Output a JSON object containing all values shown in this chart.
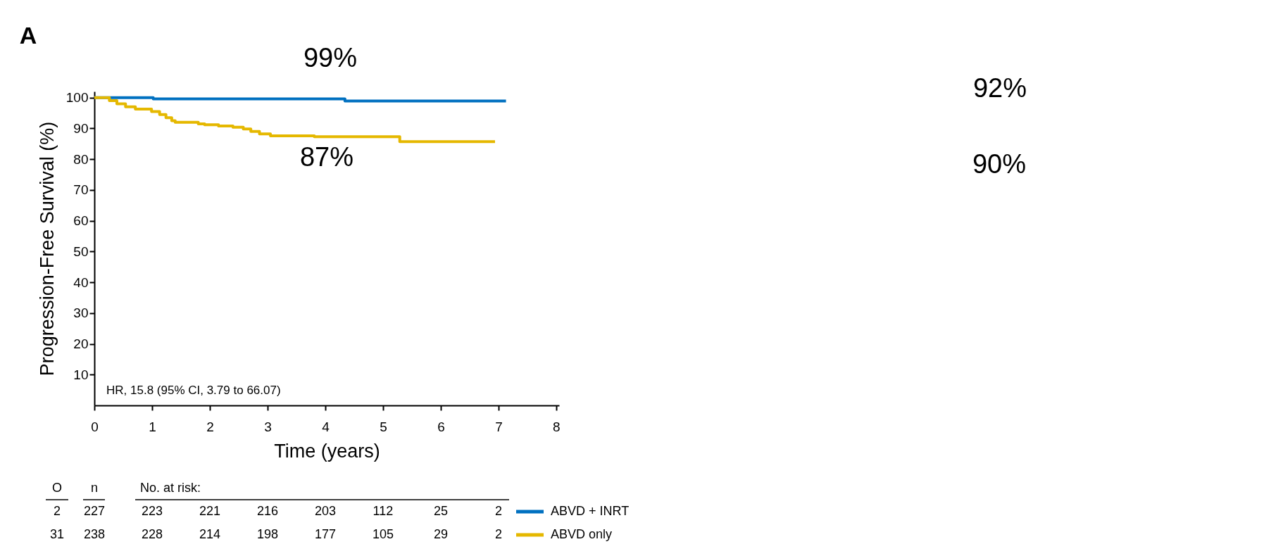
{
  "chart_data": {
    "type": "step",
    "title": "A",
    "xlabel": "Time (years)",
    "ylabel": "Progression-Free Survival (%)",
    "xlim": [
      0,
      8.05
    ],
    "xticks": [
      0,
      1,
      2,
      3,
      4,
      5,
      6,
      7,
      8
    ],
    "ylim": [
      0,
      102
    ],
    "yticks": [
      10,
      20,
      30,
      40,
      50,
      60,
      70,
      80,
      90,
      100
    ],
    "grid": false,
    "legend": "bottom right",
    "line_style": "solid",
    "marker": "none",
    "series": [
      {
        "name": "ABVD + INRT",
        "color": "#0070c0",
        "x": [
          0,
          1.02,
          4.34,
          7.13
        ],
        "values": [
          100,
          99.6,
          98.9,
          98.9
        ]
      },
      {
        "name": "ABVD only",
        "color": "#e5b800",
        "x": [
          0,
          0.26,
          0.39,
          0.54,
          0.71,
          0.99,
          1.13,
          1.24,
          1.34,
          1.4,
          1.8,
          1.91,
          2.15,
          2.4,
          2.58,
          2.71,
          2.86,
          3.05,
          3.81,
          5.29,
          6.94
        ],
        "values": [
          100,
          99,
          98,
          97,
          96.3,
          95.5,
          94.5,
          93.5,
          92.5,
          92,
          91.5,
          91.2,
          90.8,
          90.4,
          89.8,
          89,
          88.2,
          87.6,
          87.3,
          85.7,
          85.7
        ]
      }
    ],
    "annotations": [
      "99%",
      "87%",
      "92%",
      "90%",
      "HR, 15.8 (95% CI, 3.79 to 66.07)",
      "O",
      "n",
      "No. at risk:",
      "2",
      "227",
      "223",
      "221",
      "216",
      "203",
      "112",
      "25",
      "2",
      "31",
      "238",
      "228",
      "214",
      "198",
      "177",
      "105",
      "29",
      "2"
    ]
  }
}
